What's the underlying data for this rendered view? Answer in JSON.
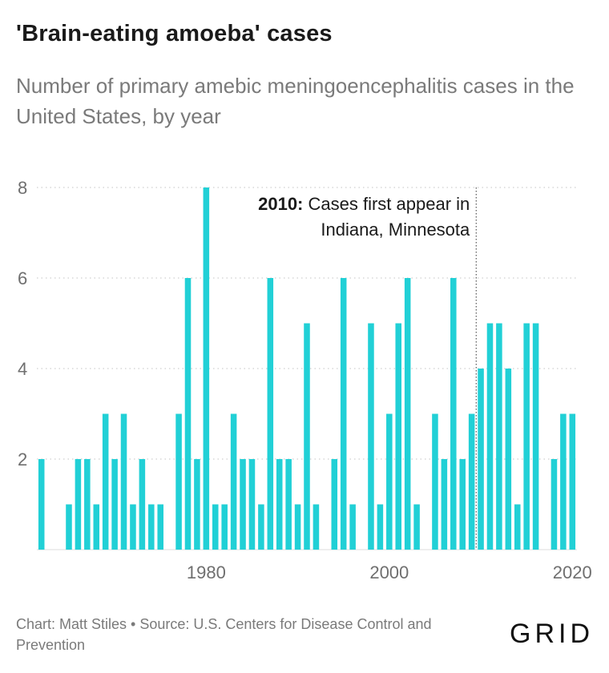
{
  "header": {
    "title": "'Brain-eating amoeba' cases",
    "subtitle": "Number of primary amebic meningoencephalitis cases in the United States, by year"
  },
  "footer": {
    "credit": "Chart: Matt Stiles • Source: U.S. Centers for Disease Control and Prevention",
    "logo": "GRID"
  },
  "colors": {
    "bar": "#21d0d6",
    "grid": "#cfcfcf",
    "tick_text": "#6f6f6f",
    "annotation_line": "#555555"
  },
  "chart_data": {
    "type": "bar",
    "title": "'Brain-eating amoeba' cases",
    "subtitle": "Number of primary amebic meningoencephalitis cases in the United States, by year",
    "x": [
      1962,
      1963,
      1964,
      1965,
      1966,
      1967,
      1968,
      1969,
      1970,
      1971,
      1972,
      1973,
      1974,
      1975,
      1976,
      1977,
      1978,
      1979,
      1980,
      1981,
      1982,
      1983,
      1984,
      1985,
      1986,
      1987,
      1988,
      1989,
      1990,
      1991,
      1992,
      1993,
      1994,
      1995,
      1996,
      1997,
      1998,
      1999,
      2000,
      2001,
      2002,
      2003,
      2004,
      2005,
      2006,
      2007,
      2008,
      2009,
      2010,
      2011,
      2012,
      2013,
      2014,
      2015,
      2016,
      2017,
      2018,
      2019,
      2020
    ],
    "values": [
      2,
      0,
      0,
      1,
      2,
      2,
      1,
      3,
      2,
      3,
      1,
      2,
      1,
      1,
      0,
      3,
      6,
      2,
      8,
      1,
      1,
      3,
      2,
      2,
      1,
      6,
      2,
      2,
      1,
      5,
      1,
      0,
      2,
      6,
      1,
      0,
      5,
      1,
      3,
      5,
      6,
      1,
      0,
      3,
      2,
      6,
      2,
      3,
      4,
      5,
      5,
      4,
      1,
      5,
      5,
      0,
      2,
      3,
      3
    ],
    "xlim": [
      1961.5,
      2020.5
    ],
    "ylim": [
      0,
      8
    ],
    "yticks": [
      2,
      4,
      6,
      8
    ],
    "xticks": [
      1980,
      2000,
      2020
    ],
    "grid": "horizontal dotted",
    "annotation": {
      "x": 2010,
      "bold": "2010:",
      "line1": " Cases first appear in",
      "line2": "Indiana, Minnesota"
    }
  }
}
